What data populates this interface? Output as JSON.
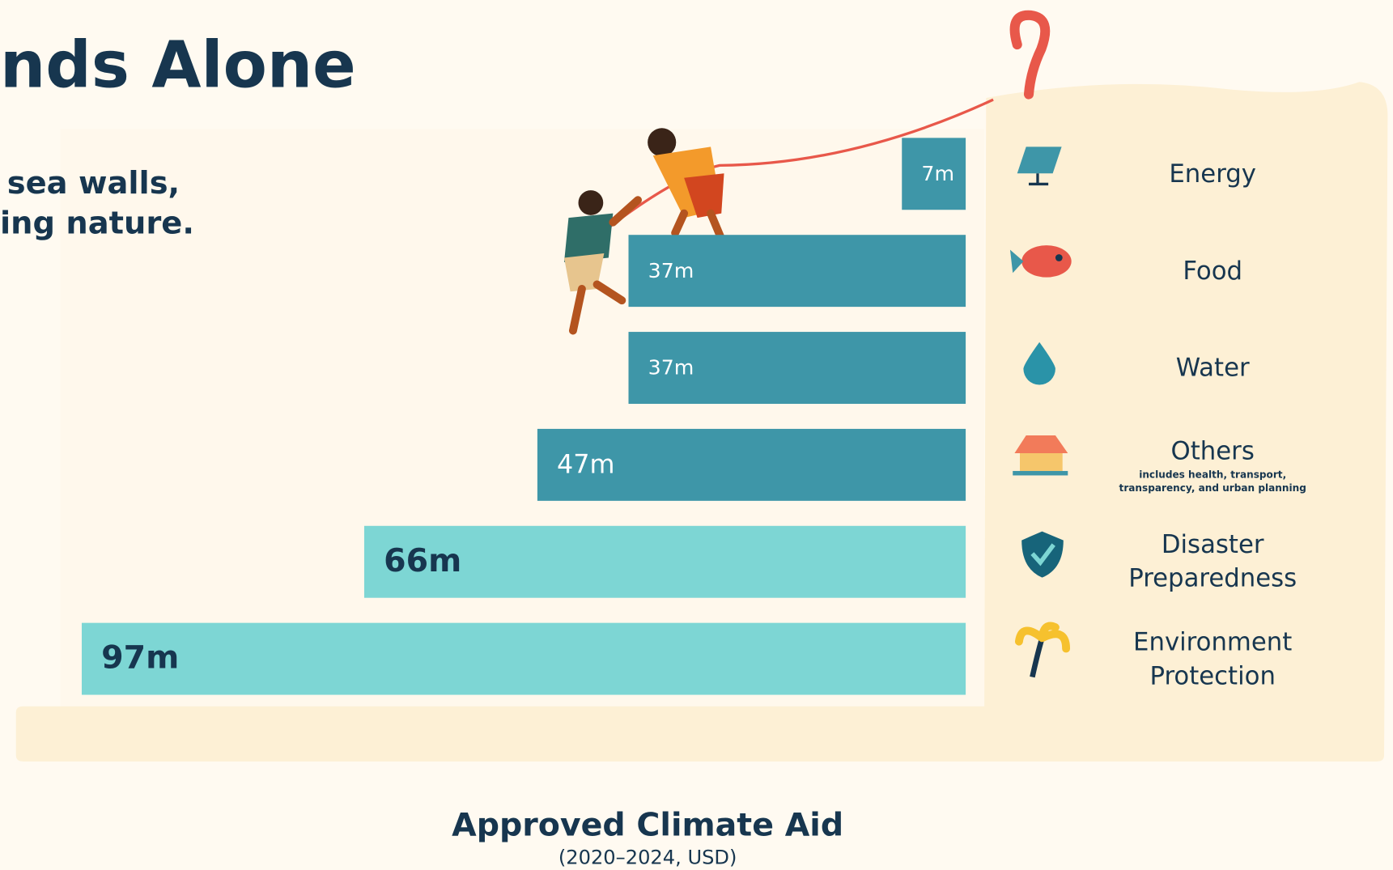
{
  "chart_data": {
    "type": "bar",
    "title": "nds Alone",
    "subtitle": [
      "sea walls,",
      "ing nature."
    ],
    "categories": [
      "Energy",
      "Food",
      "Water",
      "Others",
      "Disaster Preparedness",
      "Environment Protection"
    ],
    "category_note": "includes health, transport, transparency, and urban planning",
    "values": [
      7,
      37,
      37,
      47,
      66,
      97
    ],
    "value_labels": [
      "7m",
      "37m",
      "37m",
      "47m",
      "66m",
      "97m"
    ],
    "colors": [
      "#3e96a8",
      "#3e96a8",
      "#3e96a8",
      "#3e96a8",
      "#7dd6d4",
      "#7dd6d4"
    ],
    "axis_title": "Approved Climate Aid",
    "axis_subtitle": "(2020–2024, USD)"
  }
}
